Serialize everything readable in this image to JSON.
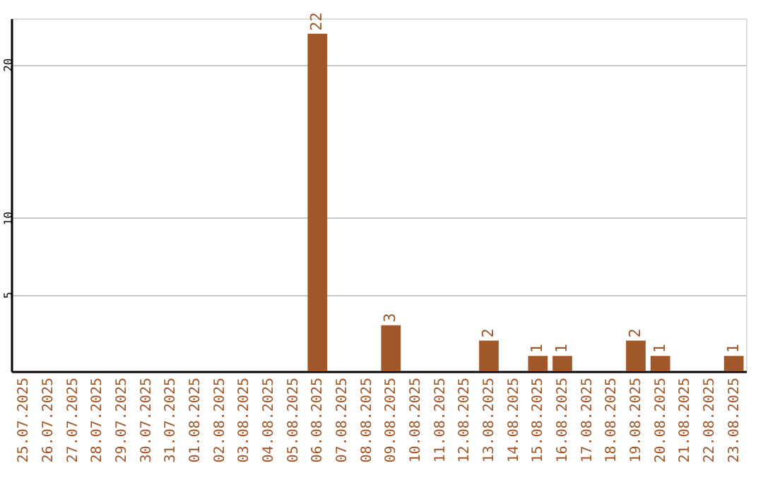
{
  "chart_data": {
    "type": "bar",
    "categories": [
      "25.07.2025",
      "26.07.2025",
      "27.07.2025",
      "28.07.2025",
      "29.07.2025",
      "30.07.2025",
      "31.07.2025",
      "01.08.2025",
      "02.08.2025",
      "03.08.2025",
      "04.08.2025",
      "05.08.2025",
      "06.08.2025",
      "07.08.2025",
      "08.08.2025",
      "09.08.2025",
      "10.08.2025",
      "11.08.2025",
      "12.08.2025",
      "13.08.2025",
      "14.08.2025",
      "15.08.2025",
      "16.08.2025",
      "17.08.2025",
      "18.08.2025",
      "19.08.2025",
      "20.08.2025",
      "21.08.2025",
      "22.08.2025",
      "23.08.2025"
    ],
    "values": [
      0,
      0,
      0,
      0,
      0,
      0,
      0,
      0,
      0,
      0,
      0,
      0,
      22,
      0,
      0,
      3,
      0,
      0,
      0,
      2,
      0,
      1,
      1,
      0,
      0,
      2,
      1,
      0,
      0,
      1
    ],
    "value_labels": [
      null,
      null,
      null,
      null,
      null,
      null,
      null,
      null,
      null,
      null,
      null,
      null,
      "22",
      null,
      null,
      "3",
      null,
      null,
      null,
      "2",
      null,
      "1",
      "1",
      null,
      null,
      "2",
      "1",
      null,
      null,
      "1"
    ],
    "color": "#a0572a",
    "ylim": [
      0,
      23
    ],
    "yticks": [
      5,
      10,
      20
    ],
    "grid": "y"
  }
}
